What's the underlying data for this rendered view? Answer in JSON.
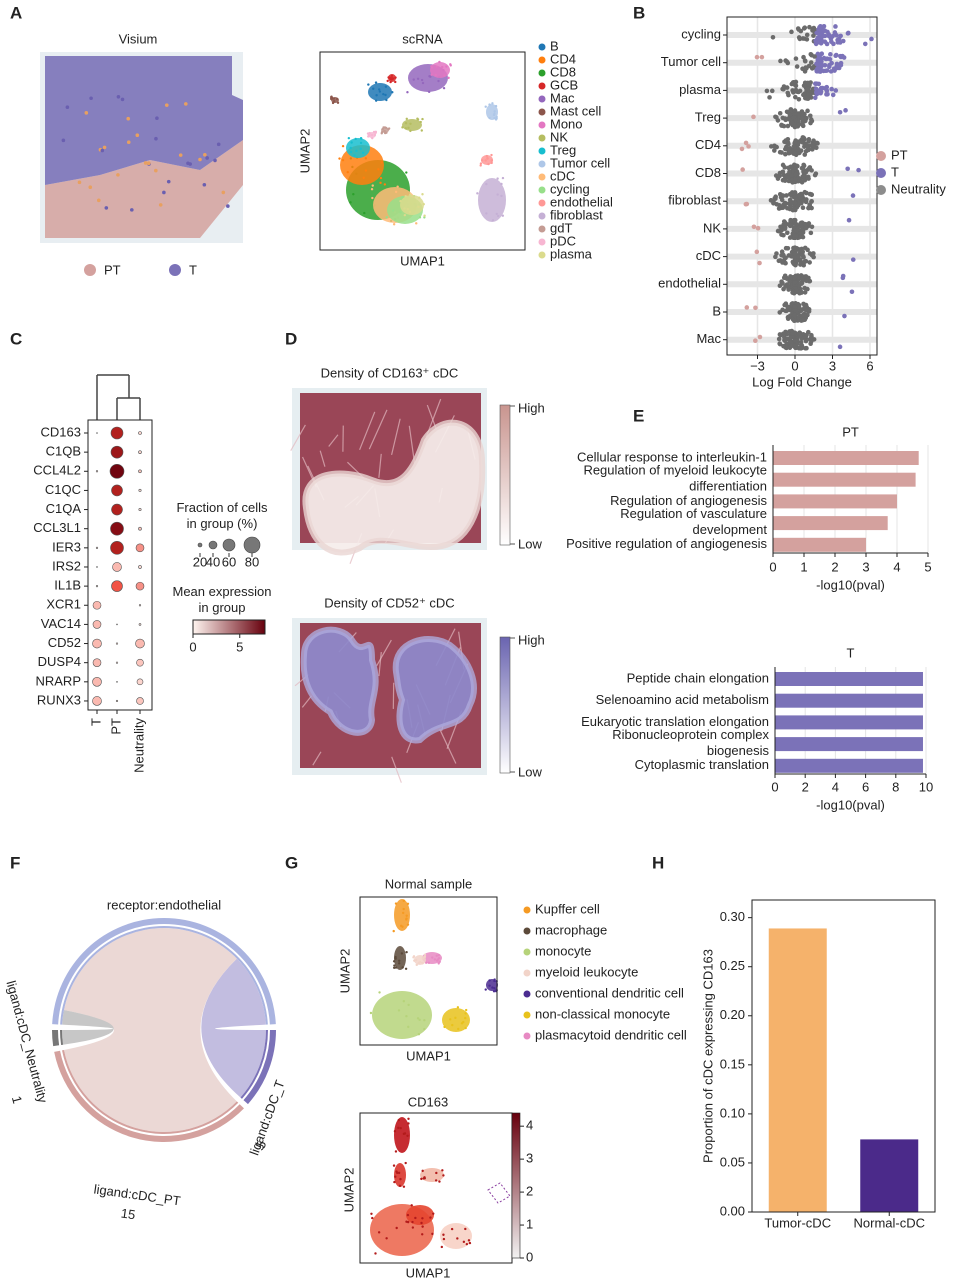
{
  "figure": {
    "panel_labels": [
      "A",
      "B",
      "C",
      "D",
      "E",
      "F",
      "G",
      "H"
    ]
  },
  "chart_data": [
    {
      "type": "spatial",
      "title": "Visium",
      "series": [
        {
          "name": "PT",
          "color": "#d4a19e"
        },
        {
          "name": "T",
          "color": "#7b72b8"
        }
      ]
    },
    {
      "type": "umap",
      "title": "scRNA",
      "xlabel": "UMAP1",
      "ylabel": "UMAP2",
      "series": [
        {
          "name": "B",
          "color": "#1f77b4"
        },
        {
          "name": "CD4",
          "color": "#ff7f0e"
        },
        {
          "name": "CD8",
          "color": "#2ca02c"
        },
        {
          "name": "GCB",
          "color": "#d62728"
        },
        {
          "name": "Mac",
          "color": "#9467bd"
        },
        {
          "name": "Mast cell",
          "color": "#8c564b"
        },
        {
          "name": "Mono",
          "color": "#e377c2"
        },
        {
          "name": "NK",
          "color": "#b5bd61"
        },
        {
          "name": "Treg",
          "color": "#17becf"
        },
        {
          "name": "Tumor cell",
          "color": "#aec7e8"
        },
        {
          "name": "cDC",
          "color": "#ffbb78"
        },
        {
          "name": "cycling",
          "color": "#98df8a"
        },
        {
          "name": "endothelial",
          "color": "#ff9896"
        },
        {
          "name": "fibroblast",
          "color": "#c5b0d5"
        },
        {
          "name": "gdT",
          "color": "#c49c94"
        },
        {
          "name": "pDC",
          "color": "#f7b6d2"
        },
        {
          "name": "plasma",
          "color": "#dbdb8d"
        }
      ]
    },
    {
      "type": "beeswarm",
      "categories": [
        "cycling",
        "Tumor cell",
        "plasma",
        "Treg",
        "CD4",
        "CD8",
        "fibroblast",
        "NK",
        "cDC",
        "endothelial",
        "B",
        "Mac"
      ],
      "xlabel": "Log Fold Change",
      "xlim": [
        -5.44,
        6.56
      ],
      "xticks": [
        {
          "value": -3,
          "label": "−3"
        },
        0,
        3,
        6
      ],
      "grid": true,
      "series": [
        {
          "name": "PT",
          "color": "#d4a19e"
        },
        {
          "name": "T",
          "color": "#7b72b8"
        },
        {
          "name": "Neutrality",
          "color": "#8c8c8c"
        }
      ]
    },
    {
      "type": "dotplot",
      "categories": [
        "CD163",
        "C1QB",
        "CCL4L2",
        "C1QC",
        "C1QA",
        "CCL3L1",
        "IER3",
        "IRS2",
        "IL1B",
        "XCR1",
        "VAC14",
        "CD52",
        "DUSP4",
        "NRARP",
        "RUNX3"
      ],
      "series": [
        {
          "name": "T",
          "values": [
            5,
            null,
            8,
            null,
            null,
            null,
            8,
            5,
            8,
            40,
            40,
            45,
            40,
            45,
            45
          ],
          "expression": [
            0.3,
            null,
            0.4,
            null,
            null,
            null,
            0.4,
            0.3,
            0.3,
            1.5,
            1.5,
            1.5,
            1.5,
            1.5,
            1.5
          ]
        },
        {
          "name": "PT",
          "values": [
            60,
            60,
            70,
            55,
            55,
            65,
            65,
            45,
            55,
            null,
            5,
            8,
            8,
            5,
            8
          ],
          "expression": [
            6,
            6.5,
            7.5,
            6,
            6,
            7,
            6,
            1.5,
            4,
            null,
            0.5,
            0.5,
            0.5,
            0.5,
            0.5
          ]
        },
        {
          "name": "Neutrality",
          "values": [
            15,
            15,
            15,
            12,
            12,
            15,
            40,
            15,
            40,
            8,
            10,
            45,
            35,
            30,
            35
          ],
          "expression": [
            0.8,
            0.8,
            1.2,
            0.6,
            0.6,
            1.2,
            2.5,
            0.6,
            2.5,
            0.4,
            0.5,
            1.5,
            1.2,
            0.8,
            1.2
          ]
        }
      ],
      "size_title": "Fraction of cells\nin group (%)",
      "size_ticks": [
        20,
        40,
        60,
        80
      ],
      "color_title": "Mean expression\nin group",
      "clim": [
        0,
        7.7
      ],
      "cticks": [
        0,
        5
      ]
    },
    {
      "type": "density",
      "title": "Density of CD163⁺ cDC",
      "high": "High",
      "low": "Low",
      "color": "#c9958f"
    },
    {
      "type": "density",
      "title": "Density of CD52⁺ cDC",
      "high": "High",
      "low": "Low",
      "color": "#6a64b0"
    },
    {
      "type": "bar",
      "orientation": "horizontal",
      "title": "PT",
      "color": "#d4a19e",
      "categories": [
        "Cellular response to interleukin-1",
        "Regulation of myeloid leukocyte\ndifferentiation",
        "Regulation of angiogenesis",
        "Regulation of vasculature\ndevelopment",
        "Positive regulation of angiogenesis"
      ],
      "values": [
        4.7,
        4.6,
        4.0,
        3.7,
        3.0
      ],
      "xlim": [
        0,
        5
      ],
      "xticks": [
        0,
        1,
        2,
        3,
        4,
        5
      ],
      "xlabel": "-log10(pval)",
      "grid": true
    },
    {
      "type": "bar",
      "orientation": "horizontal",
      "title": "T",
      "color": "#7b72b8",
      "categories": [
        "Peptide chain elongation",
        "Selenoamino acid metabolism",
        "Eukaryotic translation elongation",
        "Ribonucleoprotein complex\nbiogenesis",
        "Cytoplasmic translation"
      ],
      "values": [
        9.8,
        9.8,
        9.8,
        9.8,
        9.8
      ],
      "xlim": [
        0,
        10
      ],
      "xticks": [
        0,
        2,
        4,
        6,
        8,
        10
      ],
      "xlabel": "-log10(pval)",
      "grid": true
    },
    {
      "type": "chord",
      "title": "receptor:endothelial",
      "color": "#aab4e0",
      "series": [
        {
          "name": "ligand:cDC_T",
          "value": 5,
          "color": "#7b72b8",
          "ribbon": "#bfb9de"
        },
        {
          "name": "ligand:cDC_PT",
          "value": 15,
          "color": "#d4a19e",
          "ribbon": "#ead6d3"
        },
        {
          "name": "ligand:cDC_Neutrality",
          "value": 1,
          "color": "#777777",
          "ribbon": "#c4c4c4"
        }
      ]
    },
    {
      "type": "umap",
      "title": "Normal sample",
      "xlabel": "UMAP1",
      "ylabel": "UMAP2",
      "series": [
        {
          "name": "Kupffer cell",
          "color": "#f59a23"
        },
        {
          "name": "macrophage",
          "color": "#5c4a3a"
        },
        {
          "name": "monocyte",
          "color": "#b6d37a"
        },
        {
          "name": "myeloid leukocyte",
          "color": "#f2d4c9"
        },
        {
          "name": "conventional dendritic cell",
          "color": "#4b2c91"
        },
        {
          "name": "non-classical monocyte",
          "color": "#e8c21c"
        },
        {
          "name": "plasmacytoid dendritic cell",
          "color": "#e78ac3"
        }
      ]
    },
    {
      "type": "feature",
      "title": "CD163",
      "xlabel": "UMAP1",
      "ylabel": "UMAP2",
      "clim": [
        0,
        4.4
      ],
      "cticks": [
        0,
        1,
        2,
        3,
        4
      ]
    },
    {
      "type": "bar",
      "orientation": "vertical",
      "categories": [
        "Tumor-cDC",
        "Normal-cDC"
      ],
      "values": [
        0.289,
        0.074
      ],
      "colors": [
        "#f5b26b",
        "#4b2a8a"
      ],
      "ylabel": "Proportion of cDC expressing CD163",
      "ylim": [
        0,
        0.318
      ],
      "yticks": [
        {
          "value": 0,
          "label": "0.00"
        },
        {
          "value": 0.05,
          "label": "0.05"
        },
        {
          "value": 0.1,
          "label": "0.10"
        },
        {
          "value": 0.15,
          "label": "0.15"
        },
        {
          "value": 0.2,
          "label": "0.20"
        },
        {
          "value": 0.25,
          "label": "0.25"
        },
        {
          "value": 0.3,
          "label": "0.30"
        }
      ]
    }
  ]
}
